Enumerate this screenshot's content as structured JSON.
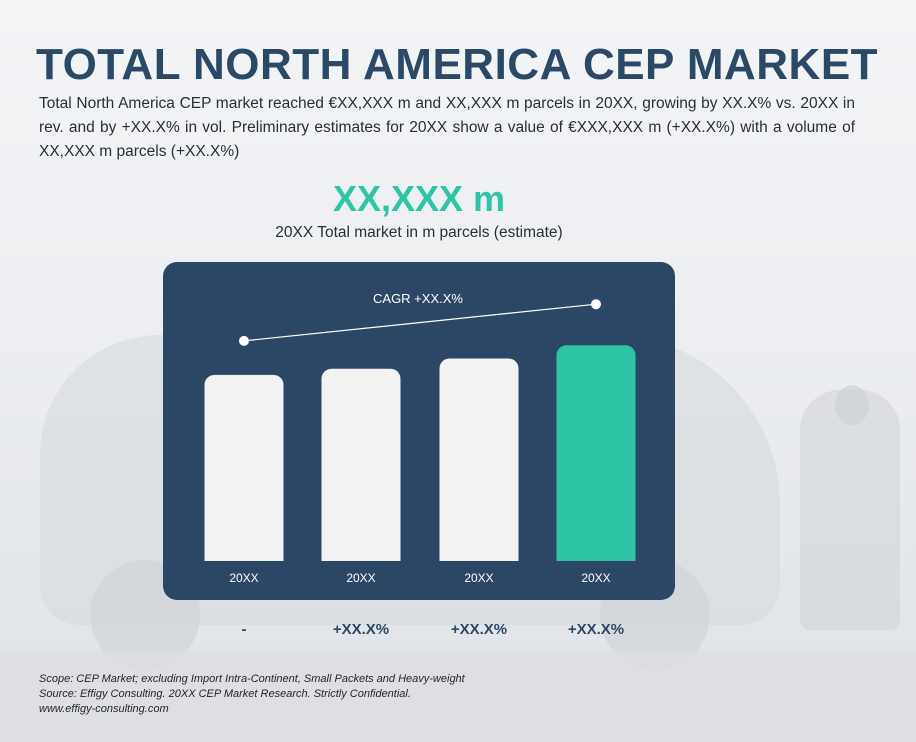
{
  "page": {
    "title": "TOTAL NORTH AMERICA CEP MARKET",
    "description": "Total North America CEP market reached €XX,XXX m and XX,XXX m parcels in 20XX, growing by XX.X% vs. 20XX in rev. and by +XX.X% in vol. Preliminary estimates for 20XX show a value of €XXX,XXX m (+XX.X%) with a volume of XX,XXX m parcels (+XX.X%)",
    "headline_value": "XX,XXX m",
    "headline_caption": "20XX Total market in m parcels (estimate)"
  },
  "colors": {
    "panel": "#2c4766",
    "bar": "#f2f2f3",
    "highlight": "#2ec4a6",
    "title": "#2b4866"
  },
  "chart_data": {
    "type": "bar",
    "categories": [
      "20XX",
      "20XX",
      "20XX",
      "20XX"
    ],
    "values": [
      182,
      188,
      198,
      211
    ],
    "highlight_index": 3,
    "ylim": [
      0,
      220
    ],
    "growth_labels": [
      "-",
      "+XX.X%",
      "+XX.X%",
      "+XX.X%"
    ],
    "cagr": {
      "label": "CAGR +XX.X%",
      "from_index": 0,
      "to_index": 3
    },
    "title": "",
    "xlabel": "",
    "ylabel": "",
    "grid": false,
    "legend": "none"
  },
  "footer": {
    "scope": "Scope: CEP Market; excluding Import Intra-Continent, Small Packets and Heavy-weight",
    "source": "Source: Effigy Consulting. 20XX CEP Market Research. Strictly Confidential.",
    "url": "www.effigy-consulting.com"
  }
}
